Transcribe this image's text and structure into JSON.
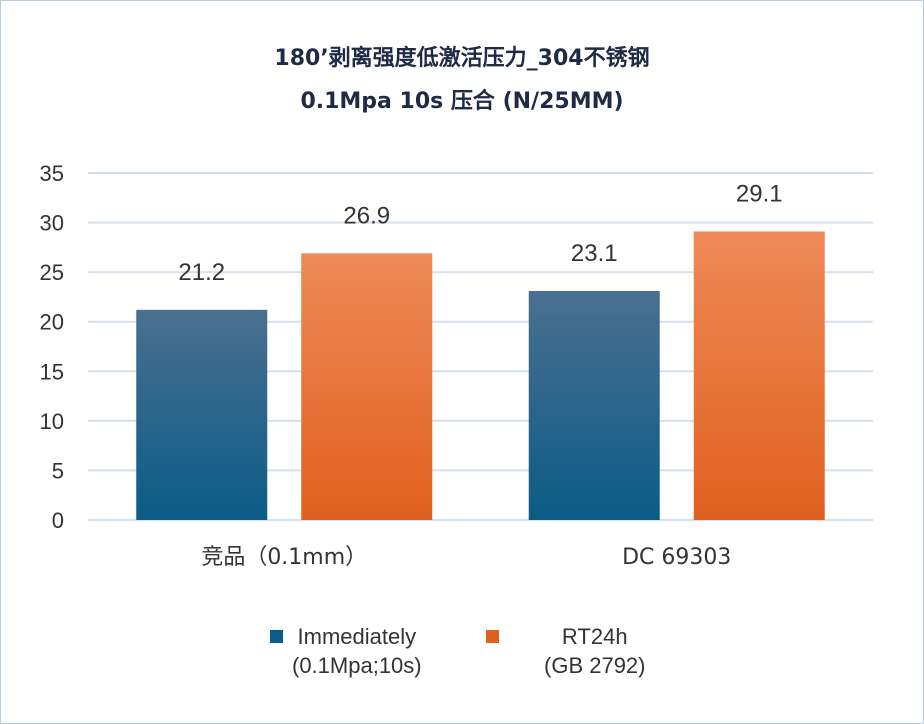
{
  "title_line1": "180’剥离强度低激活压力_304不锈钢",
  "title_line2": "0.1Mpa 10s 压合 (N/25MM)",
  "chart_data": {
    "type": "bar",
    "categories": [
      "竞品（0.1mm）",
      "DC 69303"
    ],
    "series": [
      {
        "name_line1": "Immediately",
        "name_line2": "(0.1Mpa;10s)",
        "values": [
          21.2,
          23.1
        ],
        "color_top": "#4a6f90",
        "color_bottom": "#0b5c86"
      },
      {
        "name_line1": "RT24h",
        "name_line2": "(GB 2792)",
        "values": [
          26.9,
          29.1
        ],
        "color_top": "#ee8a58",
        "color_bottom": "#e0601e"
      }
    ],
    "ylim": [
      0,
      35
    ],
    "yticks": [
      0,
      5,
      10,
      15,
      20,
      25,
      30,
      35
    ],
    "grid": true,
    "legend_position": "bottom",
    "gridline_color": "#d4e0ef"
  }
}
